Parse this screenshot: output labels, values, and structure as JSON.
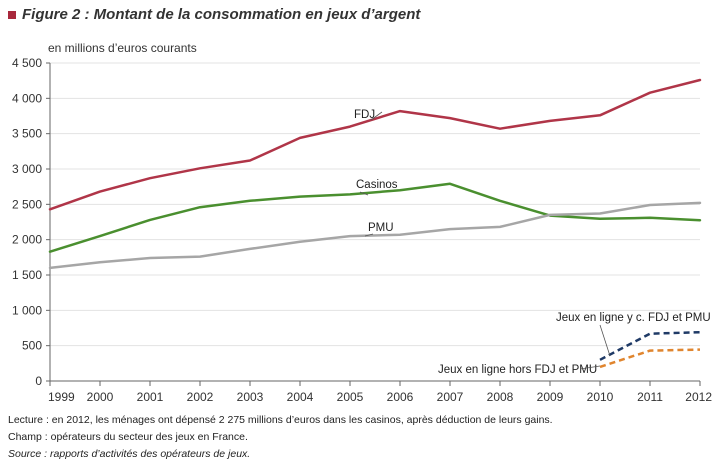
{
  "title": "Figure 2 : Montant de la consommation en jeux d’argent",
  "unit_label": "en millions d’euros courants",
  "notes": {
    "lecture": "Lecture : en 2012, les ménages ont dépensé 2 275 millions d’euros dans les casinos, après déduction de leurs gains.",
    "champ": "Champ : opérateurs du secteur des jeux en France.",
    "source": "Source : rapports d’activités des opérateurs de jeux."
  },
  "colors": {
    "fdj": "#b03548",
    "casinos": "#4a8f2f",
    "pmu": "#a6a6a6",
    "online_incl": "#1f3a66",
    "online_excl": "#e0852e",
    "axis": "#666666",
    "grid": "#e3e3e3"
  },
  "chart_data": {
    "type": "line",
    "x": [
      1999,
      2000,
      2001,
      2002,
      2003,
      2004,
      2005,
      2006,
      2007,
      2008,
      2009,
      2010,
      2011,
      2012
    ],
    "ylim": [
      0,
      4500
    ],
    "yticks": [
      0,
      500,
      1000,
      1500,
      2000,
      2500,
      3000,
      3500,
      4000,
      4500
    ],
    "ytick_labels": [
      "0",
      "500",
      "1 000",
      "1 500",
      "2 000",
      "2 500",
      "3 000",
      "3 500",
      "4 000",
      "4 500"
    ],
    "xtick_labels": [
      "1999",
      "2000",
      "2001",
      "2002",
      "2003",
      "2004",
      "2005",
      "2006",
      "2007",
      "2008",
      "2009",
      "2010",
      "2011",
      "2012"
    ],
    "series": [
      {
        "name": "FDJ",
        "key": "fdj",
        "dashed": false,
        "x": [
          1999,
          2000,
          2001,
          2002,
          2003,
          2004,
          2005,
          2006,
          2007,
          2008,
          2009,
          2010,
          2011,
          2012
        ],
        "values": [
          2430,
          2680,
          2870,
          3010,
          3120,
          3440,
          3600,
          3820,
          3720,
          3570,
          3680,
          3760,
          4080,
          4260
        ]
      },
      {
        "name": "Casinos",
        "key": "casinos",
        "dashed": false,
        "x": [
          1999,
          2000,
          2001,
          2002,
          2003,
          2004,
          2005,
          2006,
          2007,
          2008,
          2009,
          2010,
          2011,
          2012
        ],
        "values": [
          1830,
          2050,
          2280,
          2460,
          2550,
          2610,
          2640,
          2700,
          2790,
          2550,
          2340,
          2295,
          2310,
          2275
        ]
      },
      {
        "name": "PMU",
        "key": "pmu",
        "dashed": false,
        "x": [
          1999,
          2000,
          2001,
          2002,
          2003,
          2004,
          2005,
          2006,
          2007,
          2008,
          2009,
          2010,
          2011,
          2012
        ],
        "values": [
          1600,
          1680,
          1740,
          1760,
          1870,
          1970,
          2050,
          2070,
          2150,
          2180,
          2350,
          2370,
          2490,
          2520
        ]
      },
      {
        "name": "Jeux en ligne y c. FDJ et PMU",
        "key": "online_incl",
        "dashed": true,
        "x": [
          2010,
          2011,
          2012
        ],
        "values": [
          300,
          670,
          690
        ]
      },
      {
        "name": "Jeux en ligne hors FDJ et PMU",
        "key": "online_excl",
        "dashed": true,
        "x": [
          2010,
          2011,
          2012
        ],
        "values": [
          200,
          430,
          445
        ]
      }
    ]
  }
}
